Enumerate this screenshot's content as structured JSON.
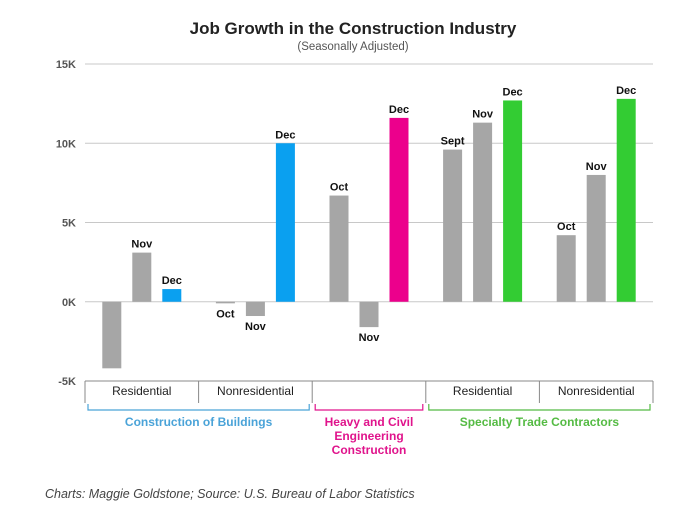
{
  "chart_data": {
    "type": "bar",
    "title": "Job Growth in the Construction Industry",
    "subtitle": "(Seasonally Adjusted)",
    "credit": "Charts: Maggie Goldstone; Source: U.S. Bureau of Labor Statistics",
    "ylim": [
      -5000,
      15000
    ],
    "yticks": [
      {
        "value": 15000,
        "label": "15K"
      },
      {
        "value": 10000,
        "label": "10K"
      },
      {
        "value": 5000,
        "label": "5K"
      },
      {
        "value": 0,
        "label": "0K"
      },
      {
        "value": -5000,
        "label": "-5K"
      }
    ],
    "grid": true,
    "categories": [
      {
        "label": "Residential",
        "group": "Construction of Buildings",
        "bars": [
          {
            "month": "",
            "value": -4200,
            "highlight": false
          },
          {
            "month": "Nov",
            "value": 3100,
            "highlight": false
          },
          {
            "month": "Dec",
            "value": 800,
            "highlight": true
          }
        ]
      },
      {
        "label": "Nonresidential",
        "group": "Construction of Buildings",
        "bars": [
          {
            "month": "Oct",
            "value": -100,
            "highlight": false
          },
          {
            "month": "Nov",
            "value": -900,
            "highlight": false
          },
          {
            "month": "Dec",
            "value": 10000,
            "highlight": true
          }
        ]
      },
      {
        "label": "",
        "group": "Heavy and Civil Engineering Construction",
        "bars": [
          {
            "month": "Oct",
            "value": 6700,
            "highlight": false
          },
          {
            "month": "Nov",
            "value": -1600,
            "highlight": false
          },
          {
            "month": "Dec",
            "value": 11600,
            "highlight": true
          }
        ]
      },
      {
        "label": "Residential",
        "group": "Specialty Trade Contractors",
        "bars": [
          {
            "month": "Sept",
            "value": 9600,
            "highlight": false
          },
          {
            "month": "Nov",
            "value": 11300,
            "highlight": false
          },
          {
            "month": "Dec",
            "value": 12700,
            "highlight": true
          }
        ]
      },
      {
        "label": "Nonresidential",
        "group": "Specialty Trade Contractors",
        "bars": [
          {
            "month": "Oct",
            "value": 4200,
            "highlight": false
          },
          {
            "month": "Nov",
            "value": 8000,
            "highlight": false
          },
          {
            "month": "Dec",
            "value": 12800,
            "highlight": true
          }
        ]
      }
    ],
    "groups": [
      {
        "name": "Construction of Buildings",
        "lines": [
          "Construction of Buildings"
        ],
        "color": "#4aa3d8"
      },
      {
        "name": "Heavy and Civil Engineering Construction",
        "lines": [
          "Heavy and Civil",
          "Engineering",
          "Construction"
        ],
        "color": "#e0148c"
      },
      {
        "name": "Specialty Trade Contractors",
        "lines": [
          "Specialty Trade Contractors"
        ],
        "color": "#55bb44"
      }
    ],
    "colors": {
      "gray": "#a6a6a6",
      "highlight_by_group": {
        "Construction of Buildings": "#0aa0f0",
        "Heavy and Civil Engineering Construction": "#ec008c",
        "Specialty Trade Contractors": "#33cc33"
      },
      "grid": "#c8c8c8",
      "axis": "#888888"
    }
  }
}
